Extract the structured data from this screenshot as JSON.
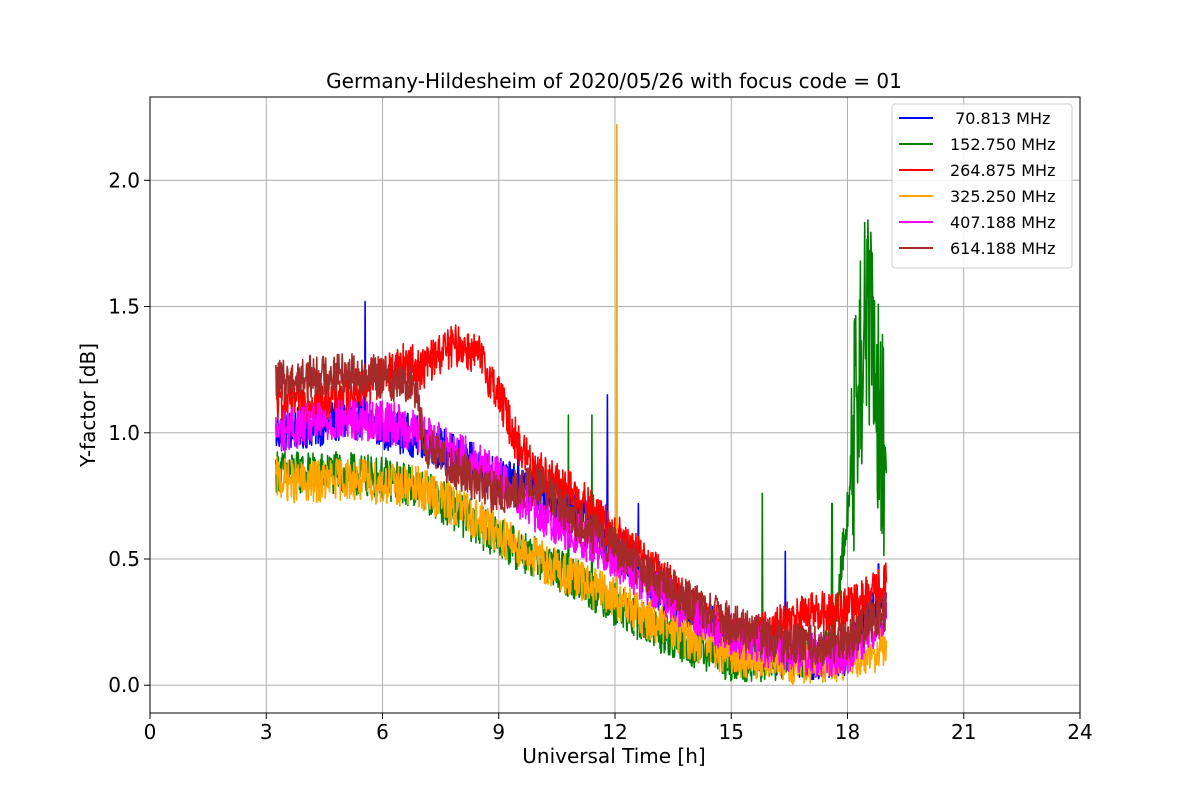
{
  "chart_data": {
    "type": "line",
    "title": "Germany-Hildesheim of 2020/05/26 with focus code = 01",
    "xlabel": "Universal Time [h]",
    "ylabel": "Y-factor [dB]",
    "xlim": [
      0,
      24
    ],
    "ylim": [
      -0.11,
      2.33
    ],
    "xticks": [
      "0",
      "3",
      "6",
      "9",
      "12",
      "15",
      "18",
      "21",
      "24"
    ],
    "yticks": [
      "0.0",
      "0.5",
      "1.0",
      "1.5",
      "2.0"
    ],
    "grid": true,
    "legend_position": "top-right",
    "series": [
      {
        "name": " 70.813 MHz",
        "color": "#0000ff",
        "x": [
          3.25,
          4,
          5,
          5.5,
          6,
          7,
          8,
          9,
          10,
          11,
          12,
          13,
          14,
          15,
          16,
          17,
          18,
          18.5,
          19
        ],
        "y": [
          1.0,
          1.02,
          1.05,
          1.06,
          1.02,
          0.98,
          0.9,
          0.82,
          0.75,
          0.68,
          0.55,
          0.38,
          0.28,
          0.18,
          0.12,
          0.1,
          0.12,
          0.3,
          0.3
        ],
        "spikes": [
          [
            5.55,
            1.52
          ],
          [
            9.5,
            1.0
          ],
          [
            11.8,
            1.15
          ],
          [
            12.6,
            0.72
          ],
          [
            16.4,
            0.53
          ],
          [
            18.8,
            0.48
          ]
        ]
      },
      {
        "name": "152.750 MHz",
        "color": "#008000",
        "x": [
          3.25,
          4,
          5,
          6,
          7,
          8,
          9,
          10,
          11,
          12,
          13,
          14,
          15,
          16,
          17,
          17.6,
          18,
          18.3,
          18.5,
          18.7,
          18.9,
          19
        ],
        "y": [
          0.85,
          0.84,
          0.84,
          0.82,
          0.78,
          0.68,
          0.58,
          0.5,
          0.42,
          0.32,
          0.22,
          0.15,
          0.1,
          0.1,
          0.1,
          0.15,
          0.7,
          1.2,
          1.5,
          1.2,
          1.0,
          0.9
        ],
        "spikes": [
          [
            10.8,
            1.07
          ],
          [
            11.4,
            1.07
          ],
          [
            15.8,
            0.76
          ],
          [
            17.6,
            0.72
          ],
          [
            18.3,
            1.85
          ],
          [
            18.8,
            1.94
          ]
        ]
      },
      {
        "name": "264.875 MHz",
        "color": "#ff0000",
        "x": [
          3.25,
          4,
          5,
          6,
          6.5,
          7,
          7.5,
          8,
          8.5,
          9,
          9.5,
          10,
          11,
          12,
          13,
          14,
          15,
          16,
          17,
          18,
          19
        ],
        "y": [
          1.12,
          1.13,
          1.15,
          1.22,
          1.28,
          1.25,
          1.32,
          1.35,
          1.3,
          1.15,
          0.95,
          0.85,
          0.75,
          0.6,
          0.45,
          0.32,
          0.18,
          0.22,
          0.28,
          0.3,
          0.4
        ],
        "spikes": []
      },
      {
        "name": "325.250 MHz",
        "color": "#ffa500",
        "x": [
          3.25,
          4,
          5,
          6,
          7,
          8,
          9,
          10,
          11,
          12,
          13,
          14,
          15,
          16,
          17,
          18,
          19
        ],
        "y": [
          0.82,
          0.8,
          0.82,
          0.8,
          0.78,
          0.7,
          0.6,
          0.5,
          0.42,
          0.34,
          0.25,
          0.18,
          0.12,
          0.1,
          0.08,
          0.1,
          0.15
        ],
        "spikes": [
          [
            12.05,
            2.22
          ]
        ]
      },
      {
        "name": "407.188 MHz",
        "color": "#ff00ff",
        "x": [
          3.25,
          4,
          5,
          6,
          7,
          8,
          9,
          10,
          11,
          12,
          13,
          14,
          15,
          16,
          17,
          18,
          19
        ],
        "y": [
          1.0,
          1.03,
          1.05,
          1.05,
          1.0,
          0.92,
          0.82,
          0.68,
          0.6,
          0.5,
          0.38,
          0.28,
          0.2,
          0.15,
          0.12,
          0.12,
          0.28
        ],
        "spikes": []
      },
      {
        "name": "614.188 MHz",
        "color": "#a52a2a",
        "x": [
          3.25,
          4,
          5,
          6,
          6.9,
          7.05,
          8,
          9,
          10,
          11,
          12,
          13,
          14,
          15,
          16,
          17,
          18,
          19
        ],
        "y": [
          1.2,
          1.22,
          1.24,
          1.22,
          1.18,
          0.95,
          0.85,
          0.75,
          0.8,
          0.65,
          0.55,
          0.42,
          0.32,
          0.24,
          0.18,
          0.15,
          0.18,
          0.3
        ],
        "spikes": []
      }
    ]
  }
}
